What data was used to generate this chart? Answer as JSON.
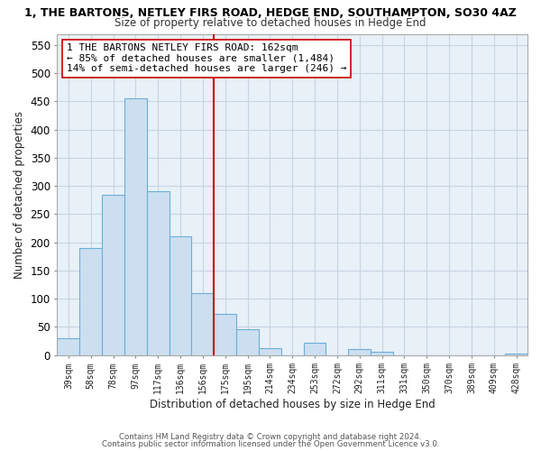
{
  "title": "1, THE BARTONS, NETLEY FIRS ROAD, HEDGE END, SOUTHAMPTON, SO30 4AZ",
  "subtitle": "Size of property relative to detached houses in Hedge End",
  "xlabel": "Distribution of detached houses by size in Hedge End",
  "ylabel": "Number of detached properties",
  "bar_color": "#ccdff0",
  "bar_edge_color": "#6baed6",
  "bins": [
    "39sqm",
    "58sqm",
    "78sqm",
    "97sqm",
    "117sqm",
    "136sqm",
    "156sqm",
    "175sqm",
    "195sqm",
    "214sqm",
    "234sqm",
    "253sqm",
    "272sqm",
    "292sqm",
    "311sqm",
    "331sqm",
    "350sqm",
    "370sqm",
    "389sqm",
    "409sqm",
    "428sqm"
  ],
  "values": [
    30,
    190,
    285,
    455,
    290,
    210,
    110,
    73,
    46,
    12,
    0,
    22,
    0,
    10,
    5,
    0,
    0,
    0,
    0,
    0,
    3
  ],
  "vline_x_index": 6,
  "vline_color": "#cc0000",
  "annotation_text": "1 THE BARTONS NETLEY FIRS ROAD: 162sqm\n← 85% of detached houses are smaller (1,484)\n14% of semi-detached houses are larger (246) →",
  "annotation_box_color": "#ffffff",
  "annotation_box_edge": "#cc0000",
  "ylim": [
    0,
    570
  ],
  "yticks": [
    0,
    50,
    100,
    150,
    200,
    250,
    300,
    350,
    400,
    450,
    500,
    550
  ],
  "footnote1": "Contains HM Land Registry data © Crown copyright and database right 2024.",
  "footnote2": "Contains public sector information licensed under the Open Government Licence v3.0.",
  "bg_color": "#ffffff",
  "plot_bg_color": "#e8f0f8",
  "grid_color": "#c8d4e4"
}
